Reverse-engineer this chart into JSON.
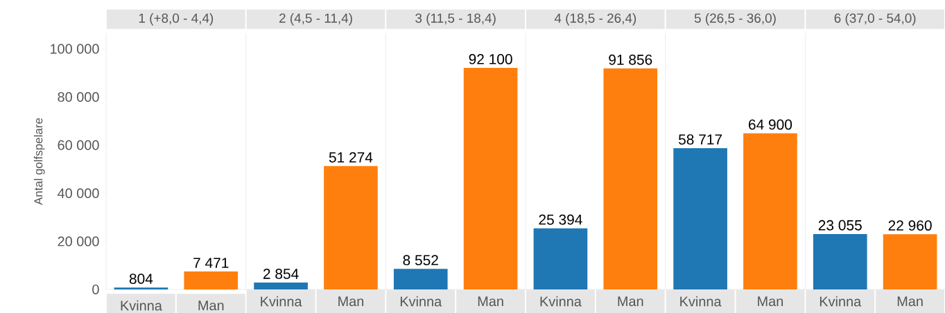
{
  "chart_data": [
    {
      "type": "bar",
      "title": "1 (+8,0 - 4,4)",
      "ylabel": "Antal golfspelare",
      "categories": [
        "Kvinna",
        "Man"
      ],
      "values": [
        804,
        7471
      ],
      "value_labels": [
        "804",
        "7 471"
      ],
      "colors": [
        "#1f77b4",
        "#ff7f0e"
      ],
      "ylim": [
        0,
        106500
      ],
      "yticks": [
        0,
        {
          "value": 20000,
          "label": "20 000"
        },
        {
          "value": 40000,
          "label": "40 000"
        },
        {
          "value": 60000,
          "label": "60 000"
        },
        {
          "value": 80000,
          "label": "80 000"
        },
        {
          "value": 100000,
          "label": "100 000"
        }
      ]
    },
    {
      "type": "bar",
      "title": "2 (4,5 - 11,4)",
      "categories": [
        "Kvinna",
        "Man"
      ],
      "values": [
        2854,
        51274
      ],
      "value_labels": [
        "2 854",
        "51 274"
      ],
      "colors": [
        "#1f77b4",
        "#ff7f0e"
      ],
      "ylim": [
        0,
        106500
      ],
      "tick_labels": "x"
    },
    {
      "type": "bar",
      "title": "3 (11,5 - 18,4)",
      "categories": [
        "Kvinna",
        "Man"
      ],
      "values": [
        8552,
        92100
      ],
      "value_labels": [
        "8 552",
        "92 100"
      ],
      "colors": [
        "#1f77b4",
        "#ff7f0e"
      ],
      "ylim": [
        0,
        106500
      ],
      "tick_labels": "x"
    },
    {
      "type": "bar",
      "title": "4 (18,5 - 26,4)",
      "categories": [
        "Kvinna",
        "Man"
      ],
      "values": [
        25394,
        91856
      ],
      "value_labels": [
        "25 394",
        "91 856"
      ],
      "colors": [
        "#1f77b4",
        "#ff7f0e"
      ],
      "ylim": [
        0,
        106500
      ],
      "tick_labels": "x"
    },
    {
      "type": "bar",
      "title": "5 (26,5 - 36,0)",
      "categories": [
        "Kvinna",
        "Man"
      ],
      "values": [
        58717,
        64900
      ],
      "value_labels": [
        "58 717",
        "64 900"
      ],
      "colors": [
        "#1f77b4",
        "#ff7f0e"
      ],
      "ylim": [
        0,
        106500
      ],
      "tick_labels": "x"
    },
    {
      "type": "bar",
      "title": "6 (37,0 - 54,0)",
      "categories": [
        "Kvinna",
        "Man"
      ],
      "values": [
        23055,
        22960
      ],
      "value_labels": [
        "23 055",
        "22 960"
      ],
      "colors": [
        "#1f77b4",
        "#ff7f0e"
      ],
      "ylim": [
        0,
        106500
      ],
      "tick_labels": "x"
    }
  ]
}
